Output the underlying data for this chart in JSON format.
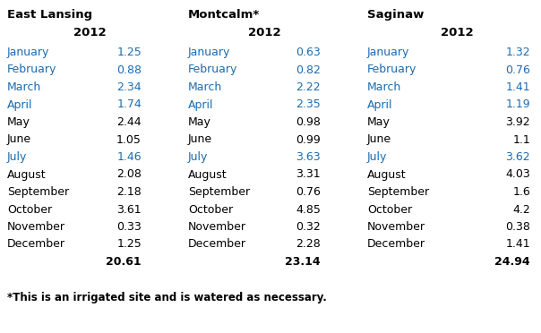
{
  "stations": [
    "East Lansing",
    "Montcalm*",
    "Saginaw"
  ],
  "year": "2012",
  "months": [
    "January",
    "February",
    "March",
    "April",
    "May",
    "June",
    "July",
    "August",
    "September",
    "October",
    "November",
    "December"
  ],
  "east_lansing": [
    "1.25",
    "0.88",
    "2.34",
    "1.74",
    "2.44",
    "1.05",
    "1.46",
    "2.08",
    "2.18",
    "3.61",
    "0.33",
    "1.25"
  ],
  "montcalm": [
    "0.63",
    "0.82",
    "2.22",
    "2.35",
    "0.98",
    "0.99",
    "3.63",
    "3.31",
    "0.76",
    "4.85",
    "0.32",
    "2.28"
  ],
  "saginaw": [
    "1.32",
    "0.76",
    "1.41",
    "1.19",
    "3.92",
    "1.1",
    "3.62",
    "4.03",
    "1.6",
    "4.2",
    "0.38",
    "1.41"
  ],
  "east_lansing_total": "20.61",
  "montcalm_total": "23.14",
  "saginaw_total": "24.94",
  "footnote": "*This is an irrigated site and is watered as necessary.",
  "month_color_normal": "#000000",
  "month_color_blue": "#1B6CB0",
  "blue_months": [
    "January",
    "February",
    "March",
    "April",
    "July"
  ],
  "bg_color": "#ffffff",
  "font_size_station": 9.5,
  "font_size_year": 9.5,
  "font_size_data": 9,
  "font_size_total": 9,
  "font_size_footnote": 8.5
}
